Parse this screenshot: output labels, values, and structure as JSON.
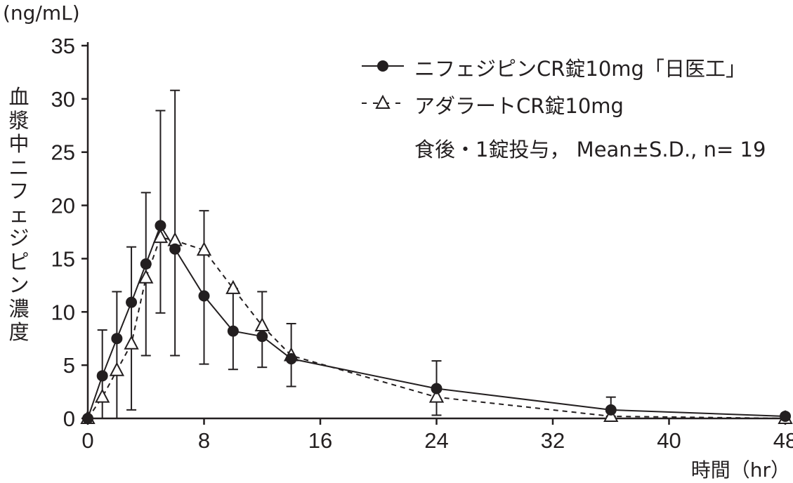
{
  "chart_data": {
    "type": "line",
    "unit_label": "(ng/mL)",
    "ylabel": "血漿中ニフェジピン濃度",
    "xlabel": "時間（hr）",
    "xlim": [
      0,
      48
    ],
    "ylim": [
      0,
      35
    ],
    "xticks": [
      0,
      8,
      16,
      24,
      32,
      40,
      48
    ],
    "yticks": [
      0,
      5,
      10,
      15,
      20,
      25,
      30,
      35
    ],
    "grid": false,
    "legend_position": "top-right",
    "annotation": "食後・1錠投与，  Mean±S.D., n= 19",
    "x": [
      0,
      1,
      2,
      3,
      4,
      5,
      6,
      8,
      10,
      12,
      14,
      24,
      36,
      48
    ],
    "series": [
      {
        "name": "ニフェジピンCR錠10mg「日医工」",
        "marker": "filled-circle",
        "line": "solid",
        "color": "#231f20",
        "values": [
          0,
          4.0,
          7.5,
          10.9,
          14.5,
          18.1,
          15.9,
          11.5,
          8.2,
          7.7,
          5.6,
          2.8,
          0.8,
          0.2
        ]
      },
      {
        "name": "アダラートCR錠10mg",
        "marker": "open-triangle",
        "line": "dashed",
        "color": "#231f20",
        "values": [
          0,
          2.0,
          4.5,
          7.0,
          13.2,
          17.0,
          16.7,
          15.8,
          12.2,
          8.7,
          5.9,
          2.0,
          0.2,
          0.0
        ]
      }
    ],
    "error_bars": [
      {
        "x": 1,
        "low": 0,
        "high": 8.3
      },
      {
        "x": 2,
        "low": 0,
        "high": 11.9
      },
      {
        "x": 3,
        "low": 0.8,
        "high": 16.1
      },
      {
        "x": 4,
        "low": 5.9,
        "high": 21.2
      },
      {
        "x": 5,
        "low": 9.9,
        "high": 28.9
      },
      {
        "x": 6,
        "low": 5.9,
        "high": 30.8
      },
      {
        "x": 8,
        "low": 5.1,
        "high": 19.5
      },
      {
        "x": 10,
        "low": 4.6,
        "high": 12.2
      },
      {
        "x": 12,
        "low": 4.8,
        "high": 11.9
      },
      {
        "x": 14,
        "low": 3.0,
        "high": 8.9
      },
      {
        "x": 24,
        "low": 0.3,
        "high": 5.4
      },
      {
        "x": 36,
        "low": 0.2,
        "high": 2.0
      }
    ]
  }
}
